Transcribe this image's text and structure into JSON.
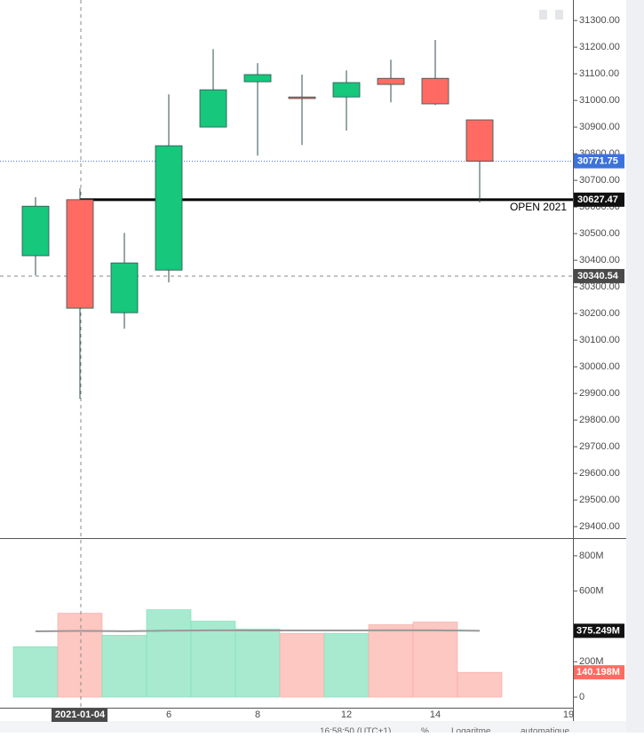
{
  "chart_data": {
    "type": "candlestick",
    "categories": [
      null,
      "2021-01-04",
      null,
      "6",
      null,
      "8",
      null,
      "12",
      null,
      "14",
      null,
      null,
      "19"
    ],
    "open": [
      30417,
      30627.47,
      30203,
      30363,
      30900,
      31070,
      31013,
      31013,
      31083,
      31083,
      30927,
      null,
      null
    ],
    "high": [
      30637,
      30670,
      30503,
      31023,
      31193,
      31140,
      31097,
      31113,
      31153,
      31227,
      30927,
      null,
      null
    ],
    "low": [
      30343,
      29880,
      30143,
      30317,
      30900,
      30793,
      30833,
      30887,
      30993,
      30983,
      30617,
      null,
      null
    ],
    "close": [
      30603,
      30220,
      30390,
      30830,
      31040,
      31097,
      31007,
      31067,
      31060,
      30987,
      30771.75,
      null,
      null
    ],
    "up_color": "#16c77c",
    "down_color": "#ff6b63",
    "ylim": [
      29357,
      31377
    ],
    "yticks": [
      {
        "value": 29400,
        "label": "29400.00"
      },
      {
        "value": 29500,
        "label": "29500.00"
      },
      {
        "value": 29600,
        "label": "29600.00"
      },
      {
        "value": 29700,
        "label": "29700.00"
      },
      {
        "value": 29800,
        "label": "29800.00"
      },
      {
        "value": 29900,
        "label": "29900.00"
      },
      {
        "value": 30000,
        "label": "30000.00"
      },
      {
        "value": 30100,
        "label": "30100.00"
      },
      {
        "value": 30200,
        "label": "30200.00"
      },
      {
        "value": 30300,
        "label": "30300.00"
      },
      {
        "value": 30400,
        "label": "30400.00"
      },
      {
        "value": 30500,
        "label": "30500.00"
      },
      {
        "value": 30600,
        "label": "30600.00"
      },
      {
        "value": 30700,
        "label": "30700.00"
      },
      {
        "value": 30800,
        "label": "30800.00"
      },
      {
        "value": 30900,
        "label": "30900.00"
      },
      {
        "value": 31000,
        "label": "31000.00"
      },
      {
        "value": 31100,
        "label": "31100.00"
      },
      {
        "value": 31200,
        "label": "31200.00"
      },
      {
        "value": 31300,
        "label": "31300.00"
      }
    ],
    "last_price": 30771.75,
    "reference_line": {
      "label": "OPEN 2021",
      "value": 30627.47
    },
    "crosshair_price": 30340.54,
    "volume": [
      285,
      475,
      350,
      495,
      430,
      385,
      360,
      360,
      410,
      425,
      140.198,
      null,
      null
    ],
    "volume_ma": [
      372,
      375,
      373,
      376,
      378,
      377,
      377,
      377,
      378,
      378,
      375.249,
      null,
      null
    ],
    "volume_ma_label": {
      "value": 375.249,
      "label": "375.249M"
    },
    "volume_last_label": {
      "value": 140.198,
      "label": "140.198M"
    },
    "y2lim": [
      -60,
      895
    ],
    "y2ticks": [
      0,
      {
        "value": 200,
        "label": "200M"
      },
      {
        "value": 600,
        "label": "600M"
      },
      {
        "value": 800,
        "label": "800M"
      }
    ],
    "status_bar": [
      "16:58:50 (UTC+1)",
      "%",
      "Logaritme",
      "automatique"
    ]
  }
}
